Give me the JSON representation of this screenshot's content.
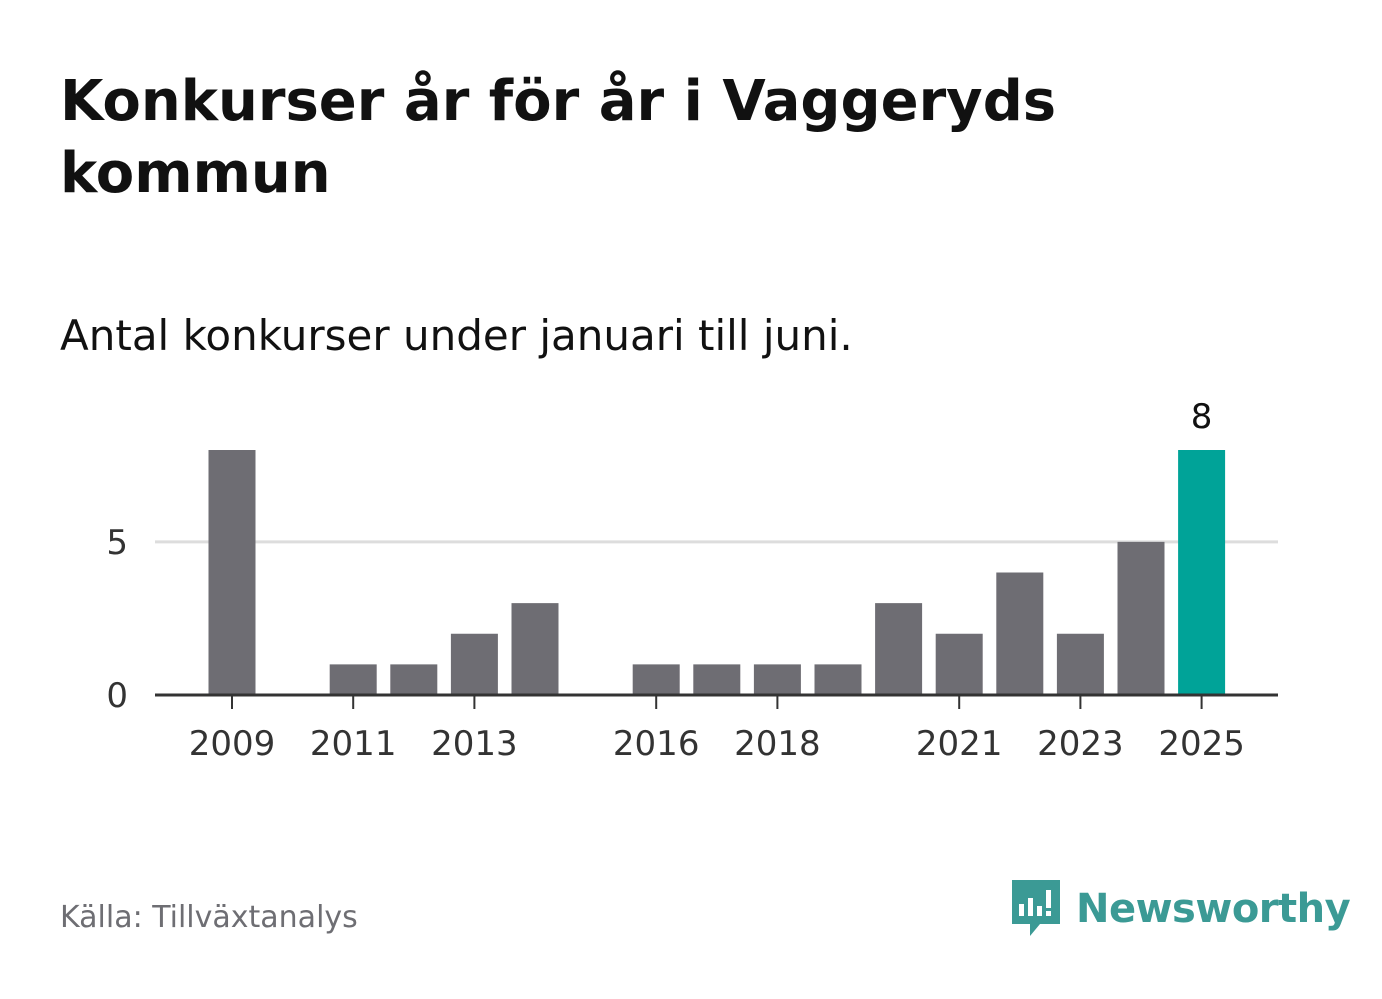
{
  "title": "Konkurser år för år i Vaggeryds kommun",
  "subtitle": "Antal konkurser under januari till juni.",
  "source": "Källa: Tillväxtanalys",
  "brand": "Newsworthy",
  "colors": {
    "bar": "#6e6d73",
    "highlight": "#00a398",
    "grid": "#dddddd",
    "axis": "#333333",
    "brand": "#3b9a95"
  },
  "chart_data": {
    "type": "bar",
    "categories": [
      "2009",
      "2010",
      "2011",
      "2012",
      "2013",
      "2014",
      "2015",
      "2016",
      "2017",
      "2018",
      "2019",
      "2020",
      "2021",
      "2022",
      "2023",
      "2024",
      "2025"
    ],
    "values": [
      8,
      0,
      1,
      1,
      2,
      3,
      0,
      1,
      1,
      1,
      1,
      3,
      2,
      4,
      2,
      5,
      8
    ],
    "tick_labels": [
      "2009",
      "2011",
      "2013",
      "2016",
      "2018",
      "2021",
      "2023",
      "2025"
    ],
    "y_ticks": [
      0,
      5
    ],
    "ylim": [
      0,
      8
    ],
    "highlight_category": "2025",
    "highlight_label": "8",
    "grid": true,
    "xlabel": "",
    "ylabel": ""
  }
}
